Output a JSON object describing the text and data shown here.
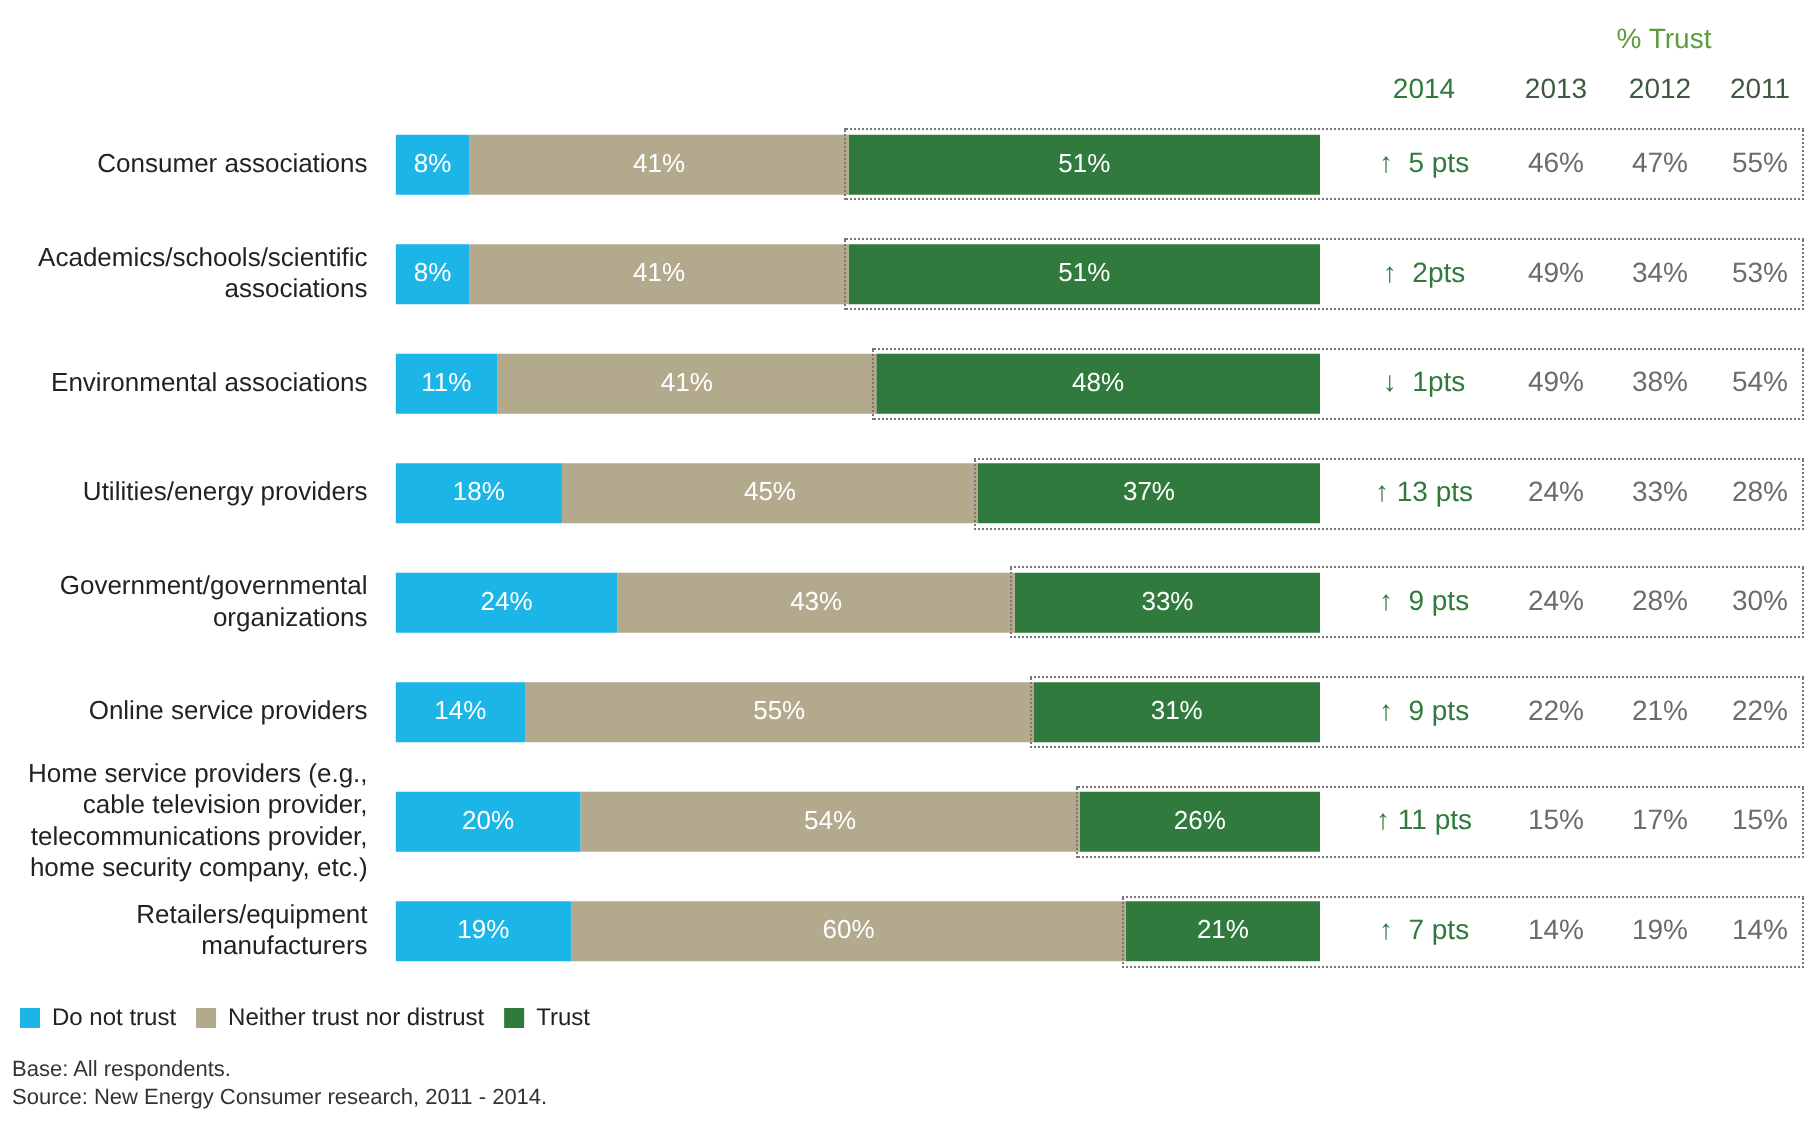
{
  "chart_data": {
    "type": "bar",
    "orientation": "horizontal",
    "stacked": true,
    "xlim": [
      0,
      100
    ],
    "tick_labels": "y",
    "grid": false,
    "legend": "bottom left",
    "categories": [
      "Consumer associations",
      "Academics/schools/scientific associations",
      "Environmental associations",
      "Utilities/energy providers",
      "Government/governmental organizations",
      "Online service providers",
      "Home service providers (e.g., cable television provider, telecommunications provider, home security company, etc.)",
      "Retailers/equipment manufacturers"
    ],
    "series": [
      {
        "name": "Do not trust",
        "color": "#1cb5e8",
        "values": [
          8,
          8,
          11,
          18,
          24,
          14,
          20,
          19
        ],
        "value_labels": [
          "8%",
          "8%",
          "11%",
          "18%",
          "24%",
          "14%",
          "20%",
          "19%"
        ]
      },
      {
        "name": "Neither trust nor distrust",
        "color": "#b3a98c",
        "values": [
          41,
          41,
          41,
          45,
          43,
          55,
          54,
          60
        ],
        "value_labels": [
          "41%",
          "41%",
          "41%",
          "45%",
          "43%",
          "55%",
          "54%",
          "60%"
        ]
      },
      {
        "name": "Trust",
        "color": "#2f7a3c",
        "values": [
          51,
          51,
          48,
          37,
          33,
          31,
          26,
          21
        ],
        "value_labels": [
          "51%",
          "51%",
          "48%",
          "37%",
          "33%",
          "31%",
          "26%",
          "21%"
        ]
      }
    ],
    "annotations": [
      "Base: All respondents.",
      "Source: New Energy Consumer research, 2011 - 2014.",
      "% Trust",
      "2014",
      "2013",
      "2012",
      "2011",
      "↑  5 pts",
      "46%",
      "47%",
      "55%",
      "↑  2pts",
      "49%",
      "34%",
      "53%",
      "↓  1pts",
      "49%",
      "38%",
      "54%",
      "↑ 13 pts",
      "24%",
      "33%",
      "28%",
      "↑  9 pts",
      "24%",
      "28%",
      "30%",
      "↑  9 pts",
      "22%",
      "21%",
      "22%",
      "↑ 11 pts",
      "15%",
      "17%",
      "15%",
      "↑  7 pts",
      "14%",
      "19%",
      "14%"
    ]
  }
}
